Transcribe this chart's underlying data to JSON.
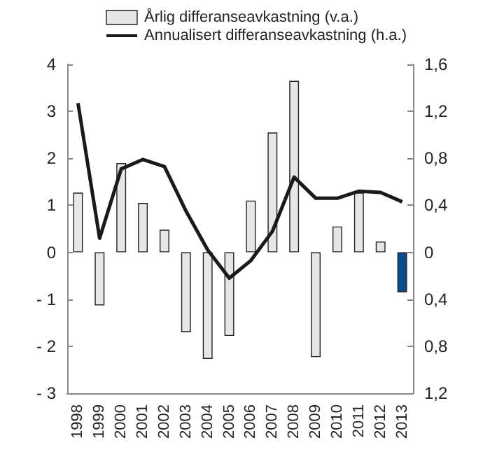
{
  "chart_data": {
    "type": "bar",
    "categories": [
      "1998",
      "1999",
      "2000",
      "2001",
      "2002",
      "2003",
      "2004",
      "2005",
      "2006",
      "2007",
      "2008",
      "2009",
      "2010",
      "2011",
      "2012",
      "2013"
    ],
    "series": [
      {
        "name": "Årlig differanseavkastning (v.a.)",
        "color": "#e6e6e6",
        "colors": [
          "#e6e6e6",
          "#e6e6e6",
          "#e6e6e6",
          "#e6e6e6",
          "#e6e6e6",
          "#e6e6e6",
          "#e6e6e6",
          "#e6e6e6",
          "#e6e6e6",
          "#e6e6e6",
          "#e6e6e6",
          "#e6e6e6",
          "#e6e6e6",
          "#e6e6e6",
          "#e6e6e6",
          "#0b4a8b"
        ],
        "values": [
          1.27,
          -1.13,
          1.9,
          1.05,
          0.48,
          -1.7,
          -2.27,
          -1.78,
          1.1,
          2.55,
          3.65,
          -2.23,
          0.55,
          1.27,
          0.23,
          -0.85
        ]
      },
      {
        "name": "Annualisert differanseavkastning (h.a.)",
        "type": "line",
        "axis": "y2",
        "color": "#1a1a1a",
        "values": [
          1.27,
          0.12,
          0.71,
          0.79,
          0.73,
          0.35,
          0.02,
          -0.22,
          -0.07,
          0.18,
          0.64,
          0.46,
          0.46,
          0.52,
          0.51,
          0.43
        ]
      }
    ],
    "ylim": [
      -3,
      4
    ],
    "yticks": [
      {
        "value": -3,
        "label": "- 3"
      },
      {
        "value": -2,
        "label": "- 2"
      },
      {
        "value": -1,
        "label": "- 1"
      },
      0,
      1,
      2,
      3,
      4
    ],
    "y2lim": [
      -1.2,
      1.6
    ],
    "y2ticks": [
      {
        "value": -1.2,
        "label": "1,2"
      },
      {
        "value": -0.8,
        "label": "0,8"
      },
      {
        "value": -0.4,
        "label": "0,4"
      },
      {
        "value": 0,
        "label": "0"
      },
      {
        "value": 0.4,
        "label": "0,4"
      },
      {
        "value": 0.8,
        "label": "0,8"
      },
      {
        "value": 1.2,
        "label": "1,2"
      },
      {
        "value": 1.6,
        "label": "1,6"
      }
    ],
    "legend": "top",
    "grid": false,
    "marker": "none"
  }
}
